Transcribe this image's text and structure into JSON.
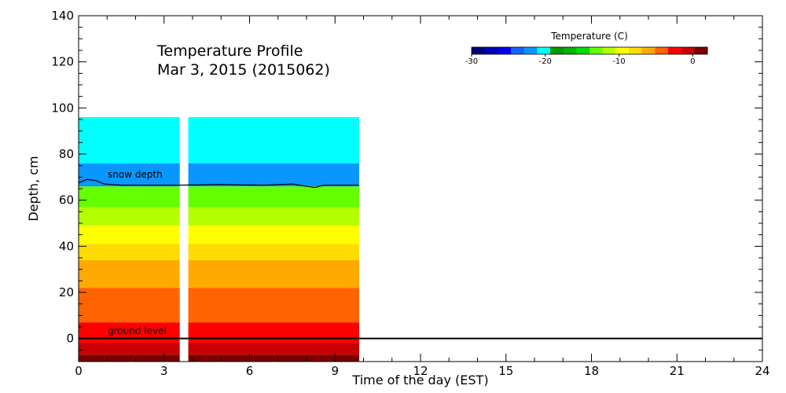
{
  "chart_data": {
    "type": "heatmap",
    "title": "Temperature Profile",
    "subtitle": "Mar  3, 2015 (2015062)",
    "xlabel": "Time of the day (EST)",
    "ylabel": "Depth, cm",
    "xlim": [
      0,
      24
    ],
    "ylim": [
      -10,
      140
    ],
    "x_ticks": [
      0,
      3,
      6,
      9,
      12,
      15,
      18,
      21,
      24
    ],
    "y_ticks": [
      0,
      20,
      40,
      60,
      80,
      100,
      120,
      140
    ],
    "x_minor_step": 1,
    "y_minor_step": 5,
    "colorbar": {
      "title": "Temperature (C)",
      "range": [
        -30,
        2
      ],
      "ticks": [
        -30,
        -20,
        -10,
        0
      ],
      "colors": [
        "#00007a",
        "#0000b4",
        "#0000e6",
        "#1464ff",
        "#0a96ff",
        "#00ffff",
        "#009600",
        "#00b400",
        "#00dc00",
        "#64ff00",
        "#b4ff00",
        "#ffff00",
        "#ffdc00",
        "#ffaa00",
        "#ff6400",
        "#ff0000",
        "#c80000",
        "#780000"
      ]
    },
    "data_gap_hours": [
      3.55,
      3.85
    ],
    "data_end_hour": 9.85,
    "series": [
      {
        "depth_range": [
          -10,
          -7
        ],
        "temperature_c": 1
      },
      {
        "depth_range": [
          -7,
          -2
        ],
        "temperature_c": -0.5
      },
      {
        "depth_range": [
          -2,
          7
        ],
        "temperature_c": -2.5
      },
      {
        "depth_range": [
          7,
          12
        ],
        "temperature_c": -3.5
      },
      {
        "depth_range": [
          12,
          22
        ],
        "temperature_c": -4.5
      },
      {
        "depth_range": [
          22,
          34
        ],
        "temperature_c": -6
      },
      {
        "depth_range": [
          34,
          41
        ],
        "temperature_c": -7.5
      },
      {
        "depth_range": [
          41,
          49
        ],
        "temperature_c": -9.5
      },
      {
        "depth_range": [
          49,
          57
        ],
        "temperature_c": -11
      },
      {
        "depth_range": [
          57,
          66
        ],
        "temperature_c": -13
      },
      {
        "depth_range": [
          66,
          76
        ],
        "temperature_c": -22
      },
      {
        "depth_range": [
          76,
          96
        ],
        "temperature_c": -20
      }
    ],
    "snow_depth_cm": [
      {
        "x": 0,
        "y": 67.5
      },
      {
        "x": 0.3,
        "y": 69
      },
      {
        "x": 0.6,
        "y": 68.5
      },
      {
        "x": 0.9,
        "y": 67
      },
      {
        "x": 1.5,
        "y": 66.5
      },
      {
        "x": 2.5,
        "y": 66.5
      },
      {
        "x": 3.5,
        "y": 66.5
      },
      {
        "x": 5,
        "y": 66.8
      },
      {
        "x": 6.5,
        "y": 66.5
      },
      {
        "x": 7.5,
        "y": 67
      },
      {
        "x": 8,
        "y": 66
      },
      {
        "x": 8.3,
        "y": 65.5
      },
      {
        "x": 8.6,
        "y": 66.5
      },
      {
        "x": 9,
        "y": 66.5
      },
      {
        "x": 9.85,
        "y": 66.5
      }
    ],
    "ground_level_cm": 0,
    "annotations": [
      "snow depth",
      "ground level"
    ]
  }
}
